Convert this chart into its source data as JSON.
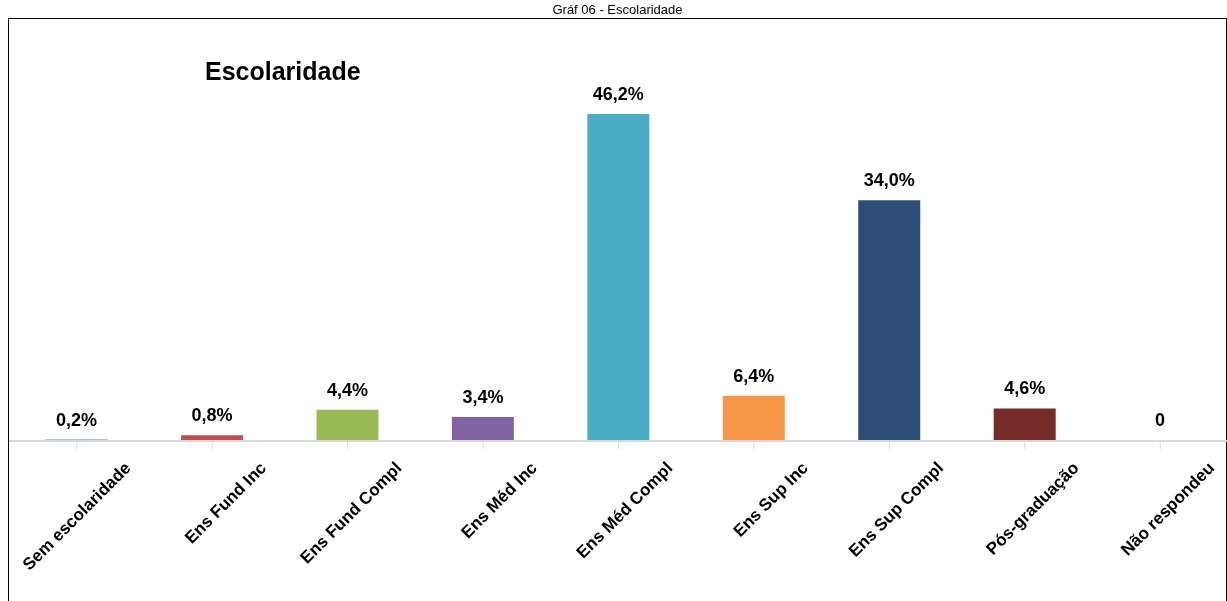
{
  "chart_data": {
    "type": "bar",
    "title": "Escolaridade",
    "annotations": [
      "Gráf 06 - Escolaridade"
    ],
    "categories": [
      "Sem escolaridade",
      "Ens Fund Inc",
      "Ens Fund Compl",
      "Ens Méd Inc",
      "Ens Méd Compl",
      "Ens Sup Inc",
      "Ens Sup Compl",
      "Pós-graduação",
      "Não respondeu"
    ],
    "values": [
      0.2,
      0.8,
      4.4,
      3.4,
      46.2,
      6.4,
      34.0,
      4.6,
      0
    ],
    "value_labels": [
      "0,2%",
      "0,8%",
      "4,4%",
      "3,4%",
      "46,2%",
      "6,4%",
      "34,0%",
      "4,6%",
      "0"
    ],
    "colors": [
      "#4f81bd",
      "#c0504d",
      "#9bbb59",
      "#8064a2",
      "#4bacc6",
      "#f79646",
      "#2c4d75",
      "#772c2a",
      "#4f81bd"
    ],
    "grid": false,
    "legend": false
  }
}
